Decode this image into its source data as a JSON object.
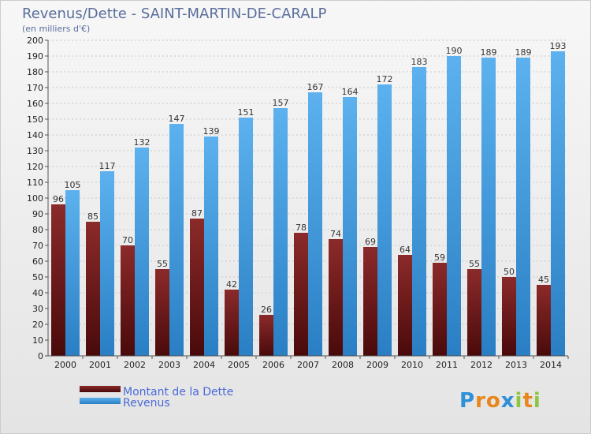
{
  "chart_data": {
    "type": "bar",
    "title": "Revenus/Dette - SAINT-MARTIN-DE-CARALP",
    "subtitle": "(en milliers d'€)",
    "categories": [
      "2000",
      "2001",
      "2002",
      "2003",
      "2004",
      "2005",
      "2006",
      "2007",
      "2008",
      "2009",
      "2010",
      "2011",
      "2012",
      "2013",
      "2014"
    ],
    "series": [
      {
        "name": "Montant de la Dette",
        "values": [
          96,
          85,
          70,
          55,
          87,
          42,
          26,
          78,
          74,
          69,
          64,
          59,
          55,
          50,
          45
        ],
        "color": "#7a1f1f"
      },
      {
        "name": "Revenus",
        "values": [
          105,
          117,
          132,
          147,
          139,
          151,
          157,
          167,
          164,
          172,
          183,
          190,
          189,
          189,
          193
        ],
        "color": "#4aa3e6"
      }
    ],
    "ylim": [
      0,
      200
    ],
    "ytick_step": 10,
    "grid": true,
    "legend": "bottom-left"
  },
  "branding": {
    "logo": "Proxiti"
  }
}
